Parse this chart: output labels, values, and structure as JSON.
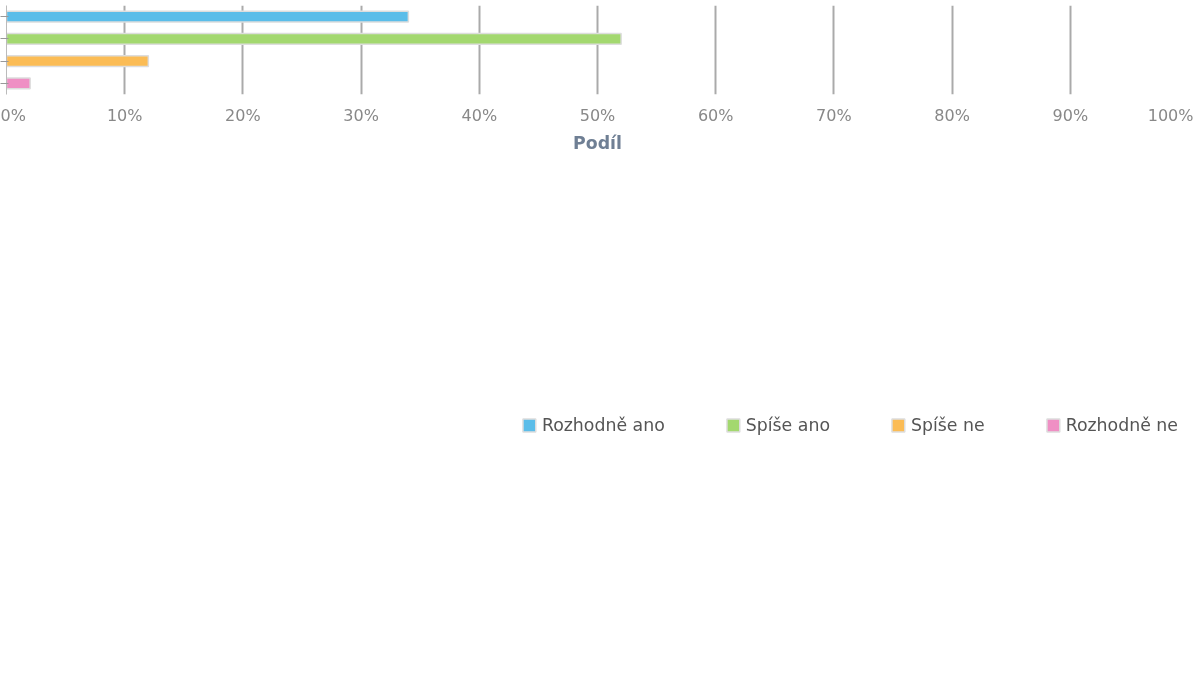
{
  "chart_data": {
    "type": "bar",
    "orientation": "horizontal",
    "xlabel": "Podíl",
    "categories": [
      null,
      null,
      null,
      null
    ],
    "series": [
      {
        "name": "Rozhodně ano",
        "color": "#5bbde9",
        "values": [
          34,
          null,
          null,
          null
        ]
      },
      {
        "name": "Spíše ano",
        "color": "#a3d86f",
        "values": [
          null,
          52,
          null,
          null
        ]
      },
      {
        "name": "Spíše ne",
        "color": "#fbbc55",
        "values": [
          null,
          null,
          12,
          null
        ]
      },
      {
        "name": "Rozhodně ne",
        "color": "#ef8fc4",
        "values": [
          null,
          null,
          null,
          2
        ]
      }
    ],
    "xlim": [
      0,
      100
    ],
    "xticks": [
      {
        "value": 0,
        "label": "0%"
      },
      {
        "value": 10,
        "label": "10%"
      },
      {
        "value": 20,
        "label": "20%"
      },
      {
        "value": 30,
        "label": "30%"
      },
      {
        "value": 40,
        "label": "40%"
      },
      {
        "value": 50,
        "label": "50%"
      },
      {
        "value": 60,
        "label": "60%"
      },
      {
        "value": 70,
        "label": "70%"
      },
      {
        "value": 80,
        "label": "80%"
      },
      {
        "value": 90,
        "label": "90%"
      },
      {
        "value": 100,
        "label": "100%"
      }
    ],
    "grid": "x",
    "legend": "bottom",
    "tick_labels": "x"
  }
}
